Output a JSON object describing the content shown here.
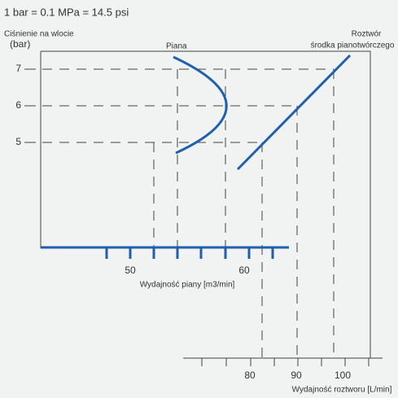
{
  "header": {
    "conversion": "1 bar = 0.1 MPa = 14.5 psi",
    "pressure_label": "Ciśnienie na wlocie",
    "pressure_unit": "(bar)"
  },
  "curves": {
    "foam": "Piana",
    "solution_line1": "Roztwór",
    "solution_line2": "środka pianotwórczego"
  },
  "pressure_ticks": [
    "7",
    "6",
    "5"
  ],
  "foam_axis": {
    "ticks": [
      "50",
      "60"
    ],
    "label": "Wydajność piany [m3/min]"
  },
  "solution_axis": {
    "ticks": [
      "80",
      "90",
      "100"
    ],
    "label": "Wydajność roztworu [L/min]"
  }
}
